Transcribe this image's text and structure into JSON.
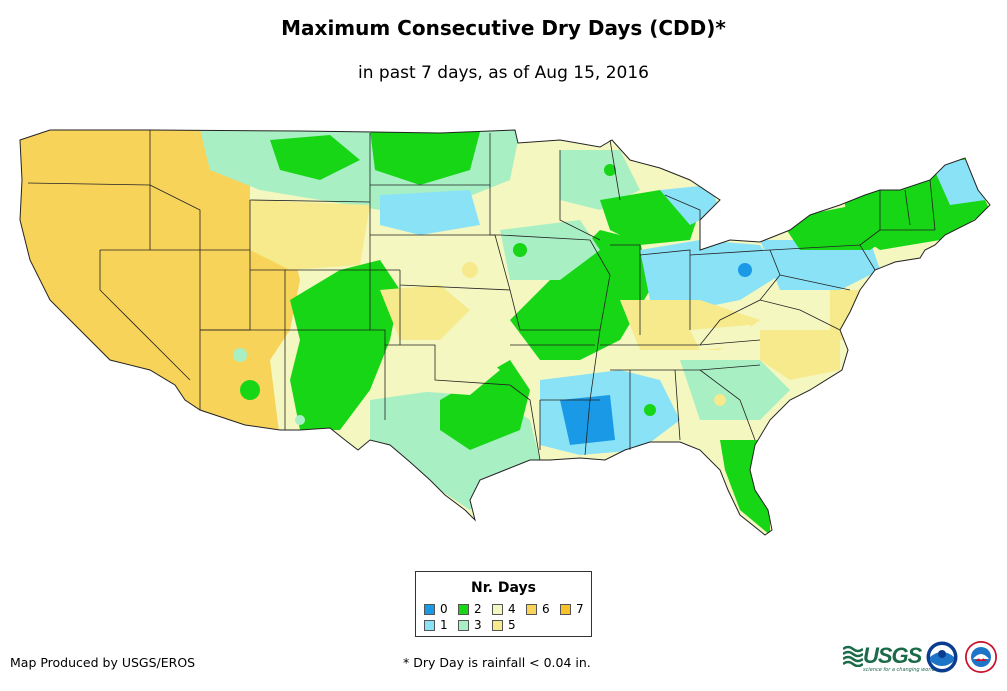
{
  "title": "Maximum Consecutive Dry Days (CDD)*",
  "subtitle": "in past 7 days, as of Aug 15, 2016",
  "legend": {
    "title": "Nr. Days",
    "items": [
      {
        "label": "0",
        "color": "#1a9ae6"
      },
      {
        "label": "1",
        "color": "#8ae2f7"
      },
      {
        "label": "2",
        "color": "#16d616"
      },
      {
        "label": "3",
        "color": "#a8efc4"
      },
      {
        "label": "4",
        "color": "#f4f7c0"
      },
      {
        "label": "5",
        "color": "#f6ea8c"
      },
      {
        "label": "6",
        "color": "#f8d35a"
      },
      {
        "label": "7",
        "color": "#f9c12a"
      }
    ]
  },
  "credit": "Map Produced by USGS/EROS",
  "footnote": "* Dry Day is rainfall < 0.04 in.",
  "logos": {
    "usgs": "USGS",
    "usgs_tagline": "science for a changing world"
  }
}
